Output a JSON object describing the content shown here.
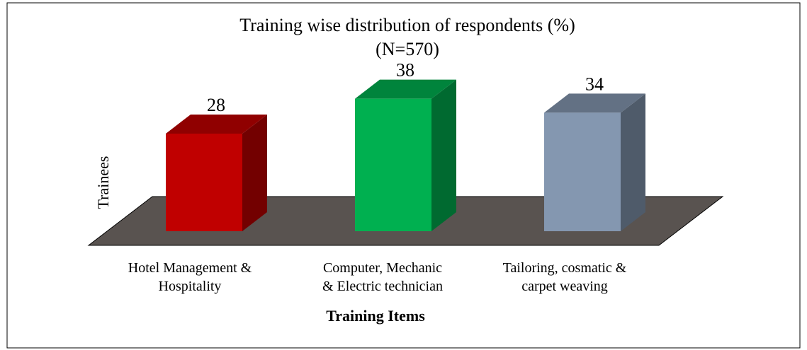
{
  "chart_data": {
    "type": "bar3d",
    "title": "Training wise distribution of respondents (%)",
    "subtitle": "(N=570)",
    "x_label": "Training Items",
    "y_label": "Trainees",
    "categories": [
      "Hotel Management &\nHospitality",
      "Computer, Mechanic\n& Electric technician",
      "Tailoring, cosmatic &\ncarpet weaving"
    ],
    "values": [
      28,
      38,
      34
    ],
    "colors": [
      "#c00000",
      "#00b050",
      "#8497b0"
    ]
  }
}
